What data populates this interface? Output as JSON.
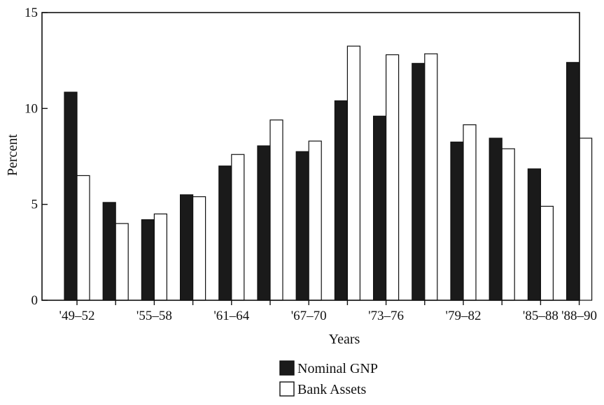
{
  "chart_data": {
    "type": "bar",
    "xlabel": "Years",
    "ylabel": "Percent",
    "ylim": [
      0,
      15
    ],
    "yticks": [
      0,
      5,
      10,
      15
    ],
    "grid": false,
    "legend_placement": "bottom-right",
    "groups": [
      "'49–52",
      "",
      "'55–58",
      "",
      "'61–64",
      "",
      "'67–70",
      "",
      "'73–76",
      "",
      "'79–82",
      "",
      "'85–88",
      "'88–90"
    ],
    "tick_labels": [
      "'49–52",
      "'55–58",
      "'61–64",
      "'67–70",
      "'73–76",
      "'79–82",
      "'85–88",
      "'88–90"
    ],
    "series": [
      {
        "name": "Nominal GNP",
        "color": "#1a1a1a",
        "values": [
          10.85,
          5.1,
          4.2,
          5.5,
          7.0,
          8.05,
          7.75,
          10.4,
          9.6,
          12.35,
          8.25,
          8.45,
          6.85,
          12.4
        ]
      },
      {
        "name": "Bank Assets",
        "color": "#ffffff",
        "values": [
          6.5,
          4.0,
          4.5,
          5.4,
          7.6,
          9.4,
          8.3,
          13.25,
          12.8,
          12.85,
          9.15,
          7.9,
          4.9,
          8.45
        ]
      }
    ]
  }
}
